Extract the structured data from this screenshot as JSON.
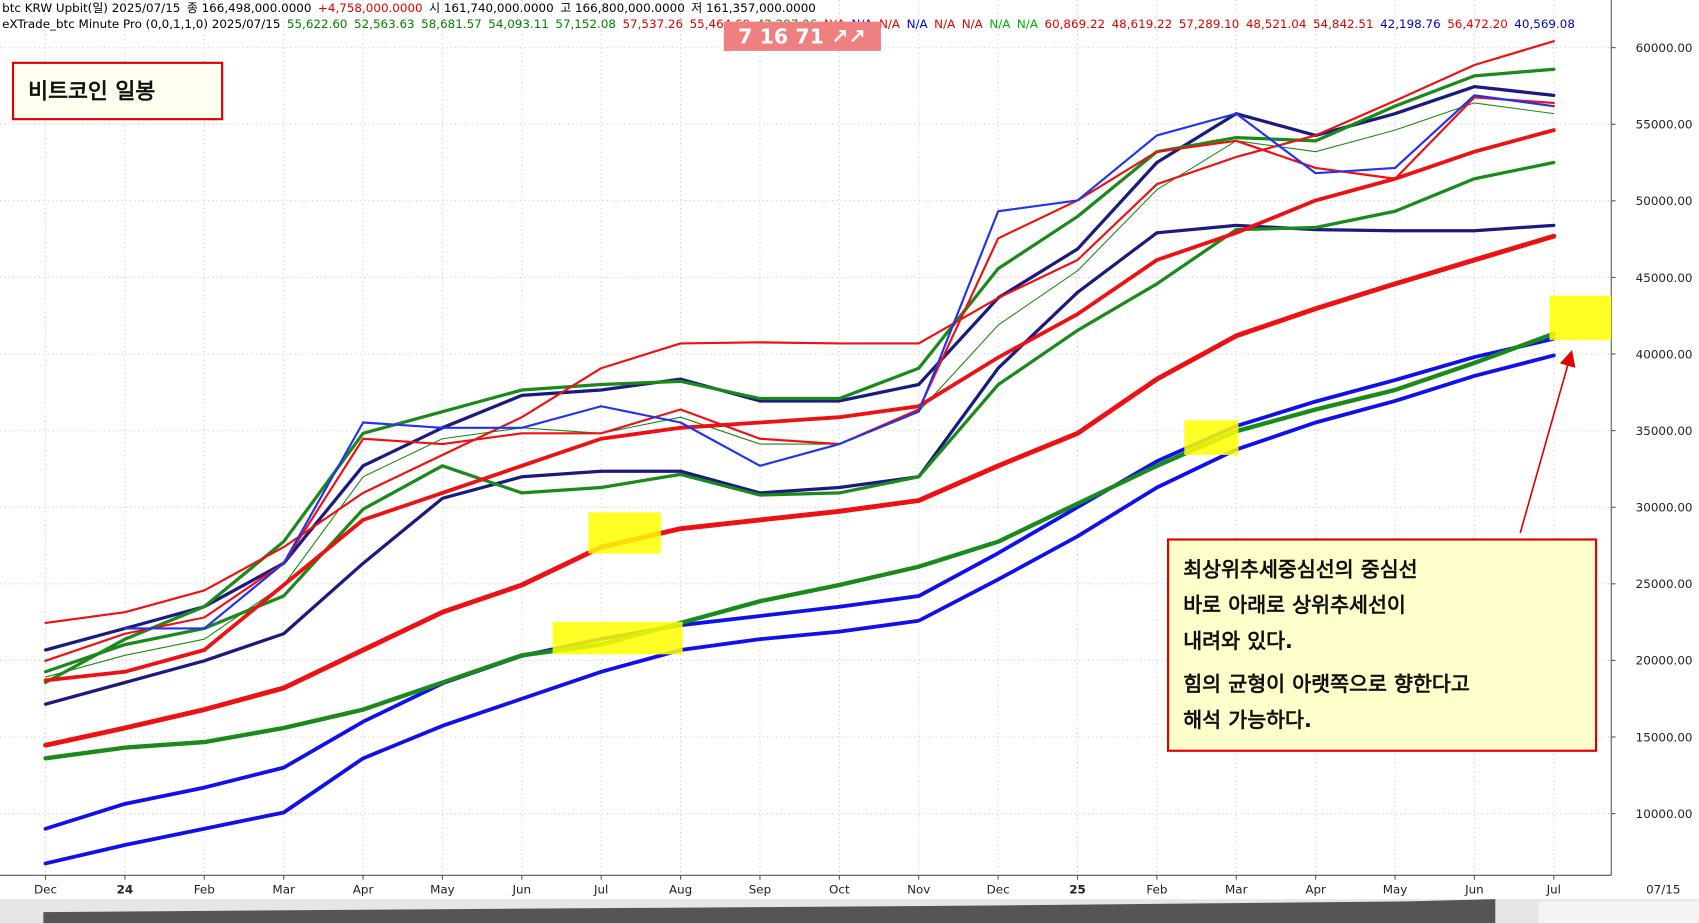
{
  "chart_data": {
    "type": "line",
    "header_line1": [
      {
        "text": "btc KRW Upbit(일) 2025/07/15",
        "color": "#000000"
      },
      {
        "text": "종 166,498,000.0000",
        "color": "#000000"
      },
      {
        "text": "+4,758,000.0000",
        "color": "#e00000"
      },
      {
        "text": "시 161,740,000.0000",
        "color": "#000000"
      },
      {
        "text": "고 166,800,000.0000",
        "color": "#000000"
      },
      {
        "text": "저 161,357,000.0000",
        "color": "#000000"
      }
    ],
    "header_line2": [
      {
        "text": "eXTrade_btc Minute Pro  (0,0,1,1,0) 2025/07/15",
        "color": "#000000"
      },
      {
        "text": "55,622.60",
        "color": "#008000"
      },
      {
        "text": "52,563.63",
        "color": "#008000"
      },
      {
        "text": "58,681.57",
        "color": "#008000"
      },
      {
        "text": "54,093.11",
        "color": "#008000"
      },
      {
        "text": "57,152.08",
        "color": "#008000"
      },
      {
        "text": "57,537.26",
        "color": "#e00000"
      },
      {
        "text": "55,464.69",
        "color": "#e00000"
      },
      {
        "text": "42,297.06",
        "color": "#008000"
      },
      {
        "text": "N/A",
        "color": "#e00000"
      },
      {
        "text": "N/A",
        "color": "#0000cc"
      },
      {
        "text": "N/A",
        "color": "#e00000"
      },
      {
        "text": "N/A",
        "color": "#0000cc"
      },
      {
        "text": "N/A",
        "color": "#e00000"
      },
      {
        "text": "N/A",
        "color": "#e00000"
      },
      {
        "text": "N/A",
        "color": "#00b000"
      },
      {
        "text": "N/A",
        "color": "#00b000"
      },
      {
        "text": "60,869.22",
        "color": "#e00000"
      },
      {
        "text": "48,619.22",
        "color": "#e00000"
      },
      {
        "text": "57,289.10",
        "color": "#e00000"
      },
      {
        "text": "48,521.04",
        "color": "#e00000"
      },
      {
        "text": "54,842.51",
        "color": "#e00000"
      },
      {
        "text": "42,198.76",
        "color": "#0000cc"
      },
      {
        "text": "56,472.20",
        "color": "#e00000"
      },
      {
        "text": "40,569.08",
        "color": "#0000cc"
      }
    ],
    "badge": "7  16  71  ↗↗",
    "title": "비트코인 일봉",
    "annotation": [
      "최상위추세중심선의 중심선",
      "바로 아래로 상위추세선이",
      "내려와 있다.",
      "힘의 균형이 아랫쪽으로 향한다고",
      "해석 가능하다."
    ],
    "x_end_label": "07/15",
    "categories": [
      "Dec",
      "24",
      "Feb",
      "Mar",
      "Apr",
      "May",
      "Jun",
      "Jul",
      "Aug",
      "Sep",
      "Oct",
      "Nov",
      "Dec",
      "25",
      "Feb",
      "Mar",
      "Apr",
      "May",
      "Jun",
      "Jul"
    ],
    "ylim": [
      5970,
      63110
    ],
    "yticks": [
      {
        "value": 10000,
        "label": "10000.00"
      },
      {
        "value": 15000,
        "label": "15000.00"
      },
      {
        "value": 20000,
        "label": "20000.00"
      },
      {
        "value": 25000,
        "label": "25000.00"
      },
      {
        "value": 30000,
        "label": "30000.00"
      },
      {
        "value": 35000,
        "label": "35000.00"
      },
      {
        "value": 40000,
        "label": "40000.00"
      },
      {
        "value": 45000,
        "label": "45000.00"
      },
      {
        "value": 50000,
        "label": "50000.00"
      },
      {
        "value": 55000,
        "label": "55000.00"
      },
      {
        "value": 60000,
        "label": "60000.00"
      }
    ],
    "grid": true,
    "series": [
      {
        "color": "#1010ee",
        "line_width": 3.5,
        "values": [
          6750,
          7950,
          9010,
          10070,
          13610,
          15730,
          17500,
          19260,
          20680,
          21390,
          21880,
          22590,
          25280,
          28100,
          31290,
          33760,
          35530,
          36940,
          38570,
          39910
        ]
      },
      {
        "color": "#1010ee",
        "line_width": 3.5,
        "values": [
          9010,
          10640,
          11700,
          13000,
          16000,
          18500,
          20300,
          21400,
          22300,
          22900,
          23500,
          24200,
          27000,
          30000,
          33000,
          35300,
          36900,
          38300,
          39800,
          41000
        ]
      },
      {
        "color": "#1a8a1a",
        "line_width": 4,
        "values": [
          13610,
          14310,
          14670,
          15590,
          16790,
          18560,
          20330,
          21030,
          22450,
          23860,
          24920,
          26120,
          27750,
          30230,
          32700,
          34960,
          36380,
          37650,
          39420,
          41330
        ]
      },
      {
        "color": "#ee1111",
        "line_width": 4.5,
        "values": [
          14460,
          15590,
          16790,
          18200,
          20680,
          23150,
          24920,
          27400,
          28600,
          29170,
          29730,
          30440,
          32700,
          34820,
          38360,
          41190,
          42960,
          44580,
          46140,
          47690
        ]
      },
      {
        "color": "#1a1a80",
        "line_width": 3,
        "values": [
          17140,
          18560,
          19970,
          21740,
          26340,
          30580,
          31990,
          32350,
          32350,
          30930,
          31290,
          31990,
          39070,
          44020,
          47910,
          48400,
          48120,
          48050,
          48050,
          48400
        ]
      },
      {
        "color": "#1a8a1a",
        "line_width": 3,
        "values": [
          19260,
          21030,
          22090,
          24210,
          29870,
          32700,
          30930,
          31290,
          32140,
          30790,
          30930,
          31990,
          38000,
          41540,
          44580,
          48120,
          48260,
          49320,
          51440,
          52500
        ]
      },
      {
        "color": "#1a8a1a",
        "line_width": 1,
        "values": [
          18910,
          20330,
          21390,
          24920,
          31990,
          34470,
          35180,
          34820,
          35880,
          34120,
          34120,
          36240,
          41890,
          45430,
          50730,
          53920,
          53210,
          54620,
          56390,
          55690
        ]
      },
      {
        "color": "#1a1a80",
        "line_width": 3,
        "values": [
          20680,
          22090,
          23510,
          26340,
          32700,
          35180,
          37300,
          37650,
          38360,
          36940,
          36940,
          38010,
          43660,
          46850,
          52500,
          55690,
          54270,
          55690,
          57450,
          56890
        ]
      },
      {
        "color": "#1a8a1a",
        "line_width": 3,
        "values": [
          18560,
          21390,
          23510,
          27750,
          34820,
          36240,
          37650,
          38010,
          38220,
          37090,
          37090,
          39070,
          45570,
          48970,
          53210,
          54130,
          53920,
          56180,
          58160,
          58590
        ]
      },
      {
        "color": "#ee1111",
        "line_width": 2,
        "values": [
          22450,
          23150,
          24570,
          27400,
          30930,
          33410,
          35880,
          39070,
          40690,
          40760,
          40690,
          40690,
          43660,
          46140,
          51090,
          52860,
          54270,
          56530,
          58870,
          60420
        ]
      },
      {
        "color": "#ee1111",
        "line_width": 2,
        "values": [
          19970,
          21740,
          22800,
          26340,
          34470,
          34120,
          34820,
          34820,
          36380,
          34470,
          34120,
          36380,
          47550,
          50030,
          53210,
          53920,
          52150,
          51440,
          56750,
          56390
        ]
      },
      {
        "color": "#ee1111",
        "line_width": 3.5,
        "values": [
          18700,
          19260,
          20680,
          24920,
          29170,
          30930,
          32700,
          34470,
          35180,
          35530,
          35880,
          36590,
          39770,
          42600,
          46140,
          47910,
          50030,
          51440,
          53210,
          54620
        ]
      },
      {
        "color": "#2233ee",
        "line_width": 2,
        "values": [
          null,
          22090,
          22090,
          26340,
          35530,
          35180,
          35180,
          36590,
          35530,
          32700,
          34120,
          36240,
          49320,
          50030,
          54270,
          55690,
          51800,
          52150,
          56890,
          56180
        ]
      }
    ]
  }
}
